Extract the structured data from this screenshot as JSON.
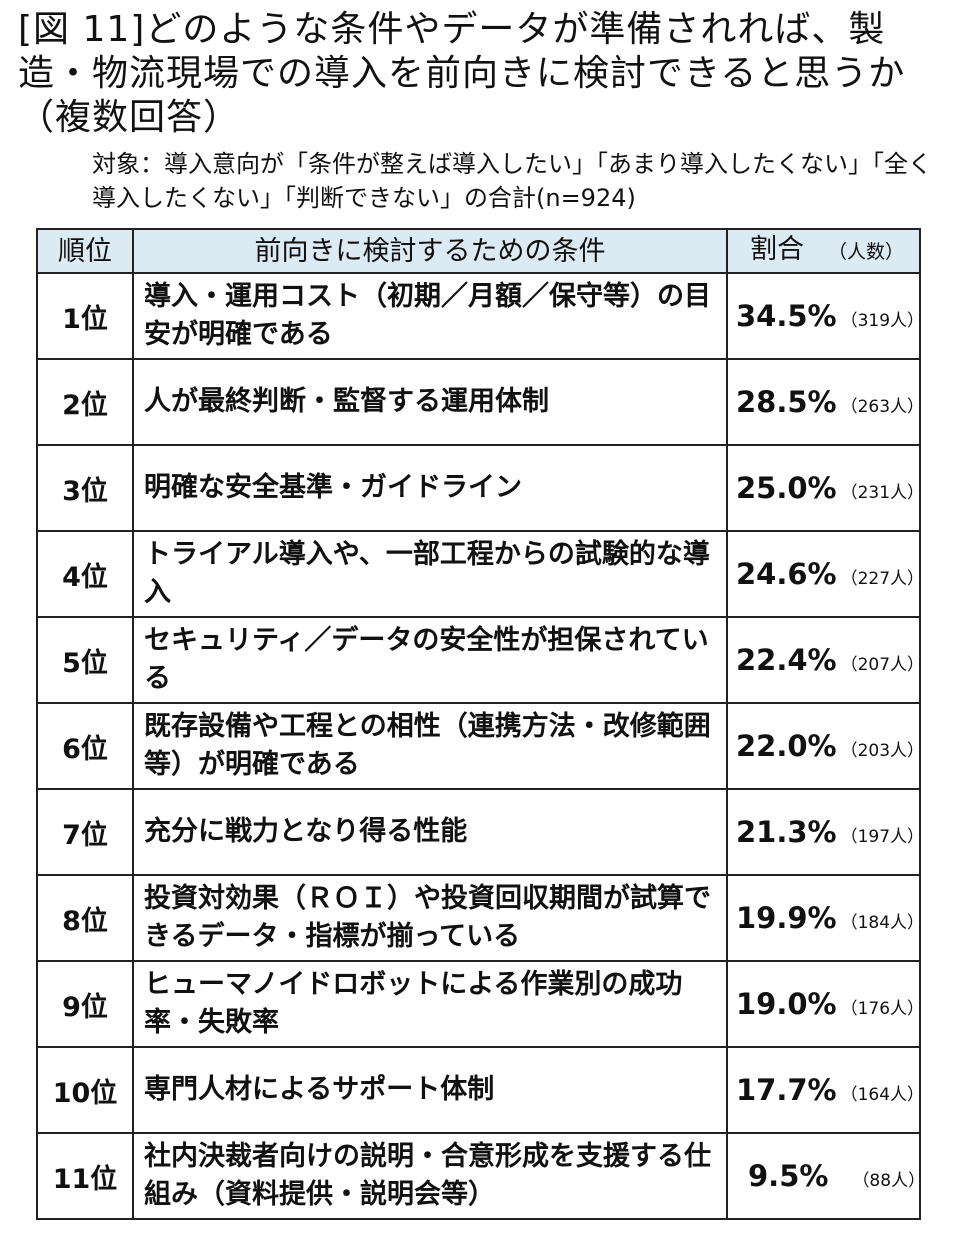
{
  "title": "[図 11]どのような条件やデータが準備されれば、製造・物流現場での導入を前向きに検討できると思うか（複数回答）",
  "subtitle": "対象：導入意向が「条件が整えば導入したい」「あまり導入したくない」「全く導入したくない」「判断できない」の合計(n=924)",
  "table": {
    "headers": {
      "rank": "順位",
      "condition": "前向きに検討するための条件",
      "percent": "割合",
      "unit": "（人数）"
    },
    "rows": [
      {
        "rank": "1位",
        "condition": "導入・運用コスト（初期／月額／保守等）の目安が明確である",
        "percent": "34.5%",
        "count": "（319人）"
      },
      {
        "rank": "2位",
        "condition": "人が最終判断・監督する運用体制",
        "percent": "28.5%",
        "count": "（263人）"
      },
      {
        "rank": "3位",
        "condition": "明確な安全基準・ガイドライン",
        "percent": "25.0%",
        "count": "（231人）"
      },
      {
        "rank": "4位",
        "condition": "トライアル導入や、一部工程からの試験的な導入",
        "percent": "24.6%",
        "count": "（227人）"
      },
      {
        "rank": "5位",
        "condition": "セキュリティ／データの安全性が担保されている",
        "percent": "22.4%",
        "count": "（207人）"
      },
      {
        "rank": "6位",
        "condition": "既存設備や工程との相性（連携方法・改修範囲等）が明確である",
        "percent": "22.0%",
        "count": "（203人）"
      },
      {
        "rank": "7位",
        "condition": "充分に戦力となり得る性能",
        "percent": "21.3%",
        "count": "（197人）"
      },
      {
        "rank": "8位",
        "condition": "投資対効果（ＲＯＩ）や投資回収期間が試算できるデータ・指標が揃っている",
        "percent": "19.9%",
        "count": "（184人）"
      },
      {
        "rank": "9位",
        "condition": "ヒューマノイドロボットによる作業別の成功率・失敗率",
        "percent": "19.0%",
        "count": "（176人）"
      },
      {
        "rank": "10位",
        "condition": "専門人材によるサポート体制",
        "percent": "17.7%",
        "count": "（164人）"
      },
      {
        "rank": "11位",
        "condition": "社内決裁者向けの説明・合意形成を支援する仕組み（資料提供・説明会等）",
        "percent": "9.5%",
        "count": "（88人）"
      }
    ]
  }
}
